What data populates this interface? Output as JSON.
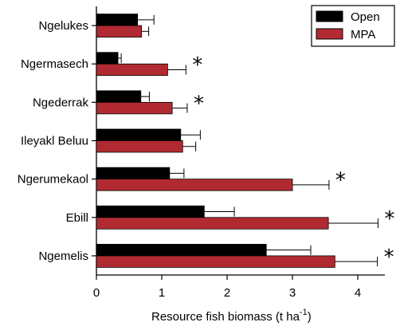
{
  "chart_data": {
    "type": "bar",
    "orientation": "horizontal",
    "categories": [
      "Ngelukes",
      "Ngermasech",
      "Ngederrak",
      "Ileyakl Beluu",
      "Ngerumekaol",
      "Ebill",
      "Ngemelis"
    ],
    "series": [
      {
        "name": "Open",
        "color": "#000000",
        "values": [
          0.63,
          0.33,
          0.68,
          1.29,
          1.12,
          1.65,
          2.6
        ],
        "error": [
          0.25,
          0.05,
          0.13,
          0.3,
          0.22,
          0.46,
          0.68
        ]
      },
      {
        "name": "MPA",
        "color": "#b22a31",
        "values": [
          0.69,
          1.09,
          1.16,
          1.32,
          3.0,
          3.55,
          3.65
        ],
        "error": [
          0.11,
          0.28,
          0.23,
          0.2,
          0.56,
          0.76,
          0.65
        ]
      }
    ],
    "significant": [
      "*",
      "*",
      "*",
      "*",
      "*"
    ],
    "significant_categories": [
      "Ngermasech",
      "Ngederrak",
      "Ngerumekaol",
      "Ebill",
      "Ngemelis"
    ],
    "xlabel_main": "Resource fish biomass (t ha",
    "xlabel_sup": "-1",
    "xlabel_end": ")",
    "xlim": [
      0,
      4.6
    ],
    "xticks": [
      "0",
      "1",
      "2",
      "3",
      "4"
    ],
    "legend_position": "top-right",
    "grid": false
  }
}
